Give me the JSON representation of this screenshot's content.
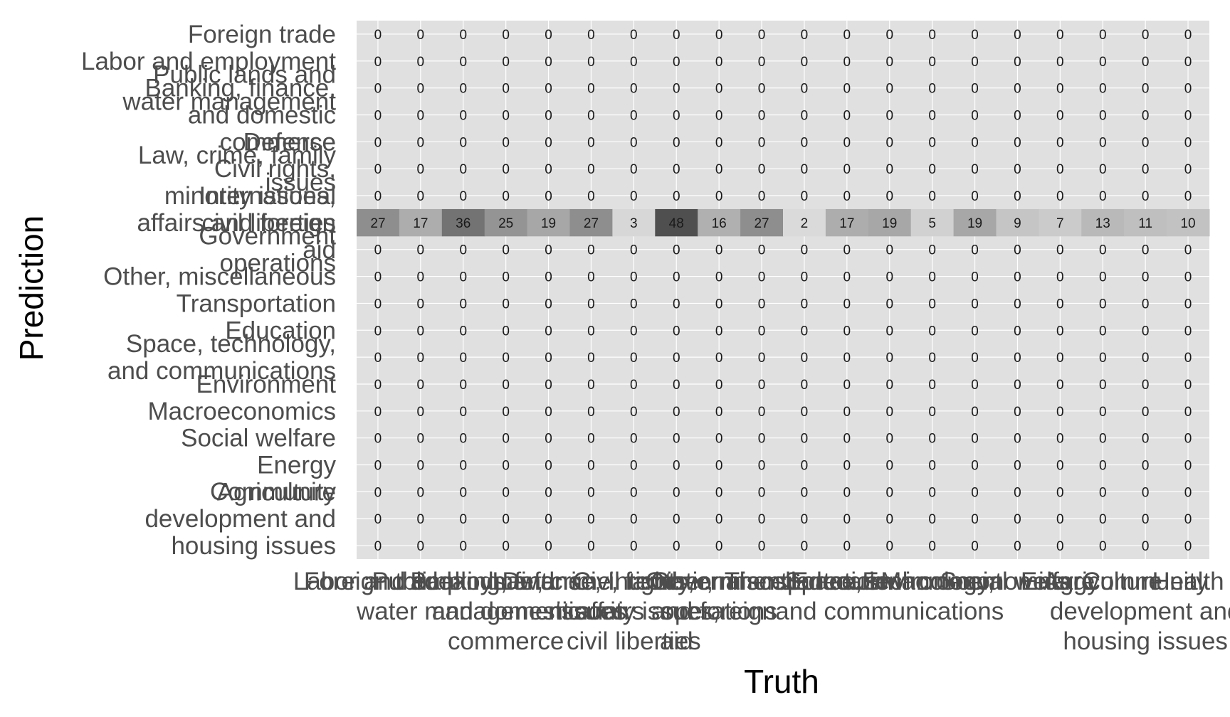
{
  "chart_data": {
    "type": "heatmap",
    "title": "",
    "xlabel": "Truth",
    "ylabel": "Prediction",
    "x_categories": [
      "Foreign trade",
      "Labor and employment",
      "Public lands and water management",
      "Banking, finance, and domestic commerce",
      "Defense",
      "Law, crime, family issues",
      "Civil rights, minority issues, civil liberties",
      "International affairs and foreign aid",
      "Government operations",
      "Other, miscellaneous",
      "Transportation",
      "Education",
      "Space, technology, and communications",
      "Environment",
      "Macroeconomics",
      "Social welfare",
      "Energy",
      "Agriculture",
      "Community development and housing issues",
      "Health"
    ],
    "y_categories": [
      "Foreign trade",
      "Labor and employment",
      "Public lands and water management",
      "Banking, finance, and domestic commerce",
      "Defense",
      "Law, crime, family issues",
      "Civil rights, minority issues, civil liberties",
      "International affairs and foreign aid",
      "Government operations",
      "Other, miscellaneous",
      "Transportation",
      "Education",
      "Space, technology, and communications",
      "Environment",
      "Macroeconomics",
      "Social welfare",
      "Energy",
      "Agriculture",
      "Community development and housing issues",
      ""
    ],
    "y_labels_wrapped": [
      [
        "Foreign trade"
      ],
      [
        "Labor and employment"
      ],
      [
        "Public lands and",
        "water management"
      ],
      [
        "Banking, finance,",
        "and domestic",
        "commerce"
      ],
      [
        "Defense"
      ],
      [
        "Law, crime, family",
        "issues"
      ],
      [
        "Civil rights,",
        "minority issues,",
        "civil liberties"
      ],
      [
        "International",
        "affairs and foreign",
        "aid"
      ],
      [
        "Government",
        "operations"
      ],
      [
        "Other, miscellaneous"
      ],
      [
        "Transportation"
      ],
      [
        "Education"
      ],
      [
        "Space, technology,",
        "and communications"
      ],
      [
        "Environment"
      ],
      [
        "Macroeconomics"
      ],
      [
        "Social welfare"
      ],
      [
        "Energy"
      ],
      [
        "Agriculture"
      ],
      [
        "Community",
        "development and",
        "housing issues"
      ],
      []
    ],
    "x_labels_wrapped": [
      [
        "Foreign trade"
      ],
      [
        "Labor and employment"
      ],
      [
        "Public lands and",
        "water management"
      ],
      [
        "Banking, finance,",
        "and domestic",
        "commerce"
      ],
      [
        "Defense"
      ],
      [
        "Law, crime, family",
        "issues"
      ],
      [
        "Civil rights,",
        "minority issues,",
        "civil liberties"
      ],
      [
        "International",
        "affairs and foreign",
        "aid"
      ],
      [
        "Government",
        "operations"
      ],
      [
        "Other, miscellaneous"
      ],
      [
        "Transportation"
      ],
      [
        "Education"
      ],
      [
        "Space, technology,",
        "and communications"
      ],
      [
        "Environment"
      ],
      [
        "Macroeconomics"
      ],
      [
        "Social welfare"
      ],
      [
        "Energy"
      ],
      [
        "Agriculture"
      ],
      [
        "Community",
        "development and",
        "housing issues"
      ],
      [
        "Health"
      ]
    ],
    "highlighted_row": 7,
    "highlighted_row_values": [
      27,
      17,
      36,
      25,
      19,
      27,
      3,
      48,
      16,
      27,
      2,
      17,
      19,
      5,
      19,
      9,
      7,
      13,
      11,
      10
    ],
    "other_rows_value": 0,
    "value_max": 48,
    "colors": {
      "background": "#e0e0e0",
      "low": "#e0e0e0",
      "high": "#4f4f4f"
    }
  }
}
